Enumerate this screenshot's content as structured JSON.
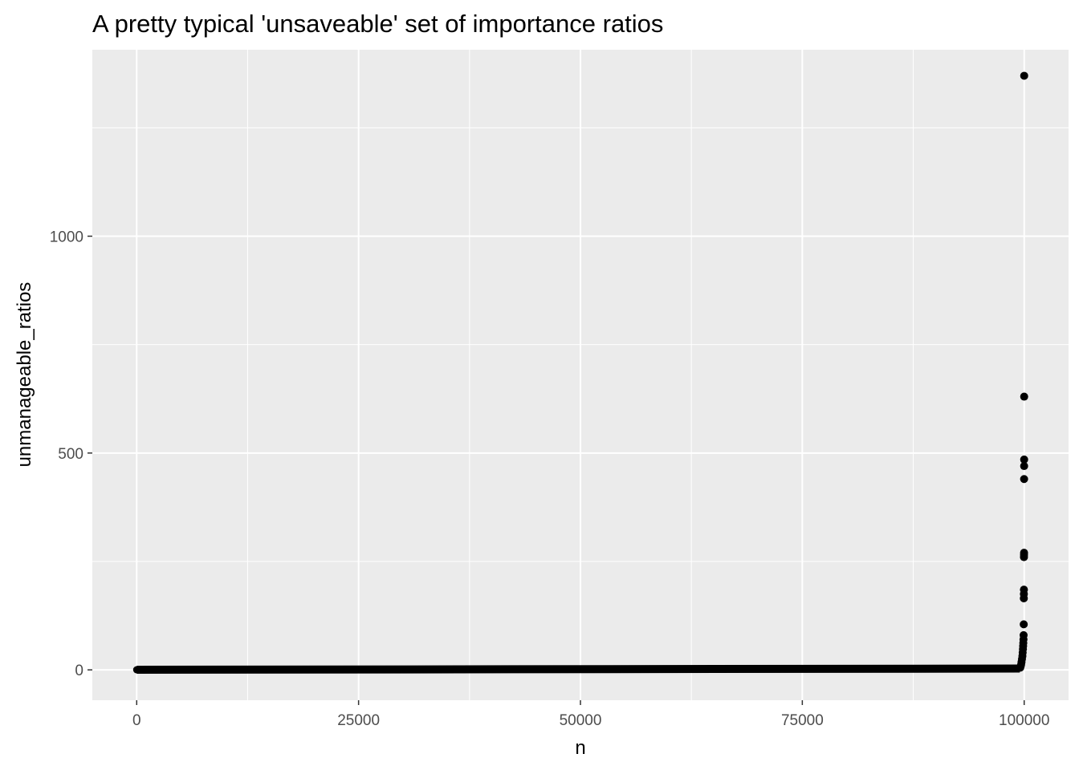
{
  "chart_data": {
    "type": "scatter",
    "title": "A pretty typical 'unsaveable' set of importance ratios",
    "xlabel": "n",
    "ylabel": "unmanageable_ratios",
    "xlim": [
      -5000,
      105000
    ],
    "ylim": [
      -70,
      1430
    ],
    "x_ticks": [
      0,
      25000,
      50000,
      75000,
      100000
    ],
    "x_tick_labels": [
      "0",
      "25000",
      "50000",
      "75000",
      "100000"
    ],
    "x_minor_ticks": [
      12500,
      37500,
      62500,
      87500
    ],
    "y_ticks": [
      0,
      500,
      1000
    ],
    "y_tick_labels": [
      "0",
      "500",
      "1000"
    ],
    "y_minor_ticks": [
      250,
      750,
      1250
    ],
    "grid": true,
    "panel_background": "#ebebeb",
    "point_color": "#000000",
    "baseline": {
      "description_x_range": [
        0,
        99500
      ],
      "y_start": 0.2,
      "y_end": 3
    },
    "points": [
      {
        "x": 99550,
        "y": 5
      },
      {
        "x": 99600,
        "y": 8
      },
      {
        "x": 99650,
        "y": 12
      },
      {
        "x": 99700,
        "y": 18
      },
      {
        "x": 99750,
        "y": 25
      },
      {
        "x": 99800,
        "y": 32
      },
      {
        "x": 99830,
        "y": 40
      },
      {
        "x": 99860,
        "y": 48
      },
      {
        "x": 99880,
        "y": 55
      },
      {
        "x": 99900,
        "y": 62
      },
      {
        "x": 99920,
        "y": 70
      },
      {
        "x": 99935,
        "y": 80
      },
      {
        "x": 99950,
        "y": 105
      },
      {
        "x": 99960,
        "y": 165
      },
      {
        "x": 99965,
        "y": 175
      },
      {
        "x": 99970,
        "y": 185
      },
      {
        "x": 99975,
        "y": 260
      },
      {
        "x": 99980,
        "y": 265
      },
      {
        "x": 99985,
        "y": 270
      },
      {
        "x": 99990,
        "y": 440
      },
      {
        "x": 99993,
        "y": 470
      },
      {
        "x": 99996,
        "y": 485
      },
      {
        "x": 99998,
        "y": 630
      },
      {
        "x": 100000,
        "y": 1370
      }
    ]
  }
}
